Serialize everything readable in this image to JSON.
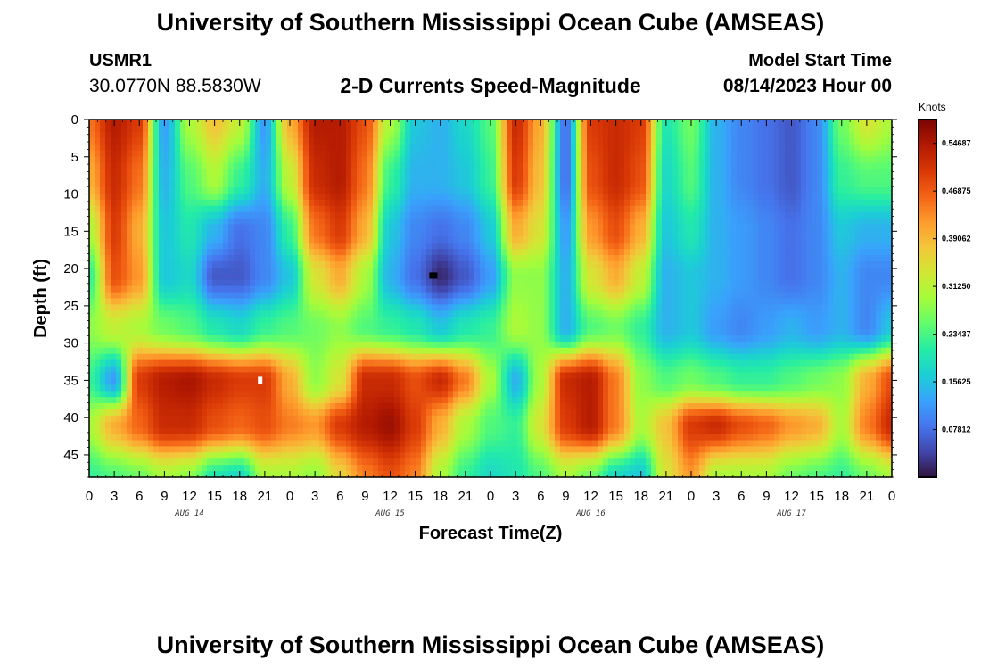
{
  "header": {
    "title": "University of Southern Mississippi Ocean Cube (AMSEAS)",
    "station": "USMR1",
    "coords": "30.0770N  88.5830W",
    "subtitle": "2-D Currents Speed-Magnitude",
    "model_start_label": "Model Start Time",
    "model_start_value": "08/14/2023 Hour 00"
  },
  "footer": {
    "title": "University of Southern Mississippi Ocean Cube (AMSEAS)"
  },
  "colors": {
    "palette": [
      "#30123b",
      "#4145ab",
      "#4675ed",
      "#39a2fc",
      "#1bcfd4",
      "#24eca6",
      "#61fc6c",
      "#a4fc3b",
      "#d1e834",
      "#f3c63a",
      "#fe9b2d",
      "#f36315",
      "#d93806",
      "#b11901",
      "#7a0403"
    ]
  },
  "chart_data": {
    "type": "heatmap",
    "xlabel": "Forecast Time(Z)",
    "ylabel": "Depth (ft)",
    "x_tick_labels": [
      "0",
      "3",
      "6",
      "9",
      "12",
      "15",
      "18",
      "21",
      "0",
      "3",
      "6",
      "9",
      "12",
      "15",
      "18",
      "21",
      "0",
      "3",
      "6",
      "9",
      "12",
      "15",
      "18",
      "21",
      "0",
      "3",
      "6",
      "9",
      "12",
      "15",
      "18",
      "21",
      "0"
    ],
    "x_range_hours": [
      0,
      96
    ],
    "day_labels": [
      {
        "text": "AUG 14",
        "hour": 12
      },
      {
        "text": "AUG 15",
        "hour": 36
      },
      {
        "text": "AUG 16",
        "hour": 60
      },
      {
        "text": "AUG 17",
        "hour": 84
      }
    ],
    "y_ticks": [
      0,
      5,
      10,
      15,
      20,
      25,
      30,
      35,
      40,
      45
    ],
    "y_range_ft": [
      0,
      48
    ],
    "colorbar": {
      "units": "Knots",
      "min": 0.0,
      "max": 0.5859,
      "labels": [
        "0.54687",
        "0.46875",
        "0.39062",
        "0.31250",
        "0.23437",
        "0.15625",
        "0.07812"
      ],
      "values": [
        0.54687,
        0.46875,
        0.39062,
        0.3125,
        0.23437,
        0.15625,
        0.07812
      ]
    },
    "field_nodes": {
      "hours": [
        0,
        3,
        6,
        9,
        12,
        15,
        18,
        21,
        24,
        27,
        30,
        33,
        36,
        39,
        42,
        45,
        48,
        51,
        54,
        57,
        60,
        63,
        66,
        69,
        72,
        75,
        78,
        81,
        84,
        87,
        90,
        93,
        96
      ],
      "depths_ft": [
        0,
        8,
        15,
        21,
        28,
        35,
        41,
        48
      ],
      "values": [
        [
          0.45,
          0.54,
          0.5,
          0.12,
          0.3,
          0.38,
          0.32,
          0.12,
          0.4,
          0.54,
          0.54,
          0.48,
          0.3,
          0.16,
          0.14,
          0.18,
          0.24,
          0.52,
          0.4,
          0.08,
          0.5,
          0.52,
          0.5,
          0.2,
          0.26,
          0.14,
          0.1,
          0.08,
          0.06,
          0.1,
          0.26,
          0.34,
          0.3
        ],
        [
          0.4,
          0.52,
          0.45,
          0.14,
          0.24,
          0.3,
          0.22,
          0.14,
          0.32,
          0.52,
          0.54,
          0.45,
          0.22,
          0.14,
          0.14,
          0.16,
          0.22,
          0.5,
          0.38,
          0.08,
          0.48,
          0.52,
          0.48,
          0.18,
          0.24,
          0.14,
          0.1,
          0.08,
          0.06,
          0.1,
          0.22,
          0.24,
          0.24
        ],
        [
          0.3,
          0.5,
          0.4,
          0.16,
          0.2,
          0.14,
          0.08,
          0.1,
          0.22,
          0.45,
          0.5,
          0.4,
          0.16,
          0.1,
          0.08,
          0.1,
          0.16,
          0.4,
          0.34,
          0.12,
          0.42,
          0.48,
          0.4,
          0.16,
          0.2,
          0.14,
          0.12,
          0.1,
          0.08,
          0.1,
          0.16,
          0.14,
          0.14
        ],
        [
          0.22,
          0.48,
          0.42,
          0.16,
          0.18,
          0.06,
          0.06,
          0.1,
          0.16,
          0.34,
          0.4,
          0.3,
          0.14,
          0.08,
          0.02,
          0.06,
          0.12,
          0.28,
          0.28,
          0.14,
          0.34,
          0.4,
          0.32,
          0.14,
          0.16,
          0.14,
          0.12,
          0.1,
          0.08,
          0.1,
          0.14,
          0.1,
          0.1
        ],
        [
          0.28,
          0.32,
          0.3,
          0.26,
          0.24,
          0.2,
          0.18,
          0.22,
          0.24,
          0.26,
          0.28,
          0.24,
          0.22,
          0.2,
          0.16,
          0.2,
          0.22,
          0.3,
          0.28,
          0.14,
          0.24,
          0.26,
          0.22,
          0.14,
          0.16,
          0.12,
          0.1,
          0.12,
          0.14,
          0.12,
          0.14,
          0.1,
          0.16
        ],
        [
          0.22,
          0.12,
          0.5,
          0.54,
          0.55,
          0.52,
          0.5,
          0.5,
          0.4,
          0.28,
          0.34,
          0.52,
          0.52,
          0.48,
          0.52,
          0.44,
          0.3,
          0.14,
          0.3,
          0.52,
          0.54,
          0.44,
          0.28,
          0.24,
          0.26,
          0.24,
          0.22,
          0.22,
          0.24,
          0.26,
          0.28,
          0.4,
          0.48
        ],
        [
          0.3,
          0.4,
          0.46,
          0.52,
          0.52,
          0.48,
          0.46,
          0.48,
          0.44,
          0.42,
          0.5,
          0.54,
          0.56,
          0.5,
          0.4,
          0.3,
          0.24,
          0.22,
          0.34,
          0.5,
          0.54,
          0.44,
          0.3,
          0.38,
          0.5,
          0.52,
          0.48,
          0.46,
          0.42,
          0.4,
          0.3,
          0.44,
          0.52
        ],
        [
          0.22,
          0.24,
          0.26,
          0.3,
          0.28,
          0.2,
          0.18,
          0.3,
          0.3,
          0.28,
          0.36,
          0.44,
          0.48,
          0.44,
          0.3,
          0.22,
          0.18,
          0.2,
          0.24,
          0.3,
          0.26,
          0.18,
          0.16,
          0.34,
          0.42,
          0.3,
          0.3,
          0.3,
          0.26,
          0.24,
          0.22,
          0.26,
          0.3
        ]
      ]
    },
    "point_markers": [
      {
        "hour": 20.5,
        "depth_ft": 35,
        "color": "#ffffff"
      },
      {
        "hour": 41,
        "depth_ft": 21,
        "color": "#000000"
      }
    ]
  }
}
